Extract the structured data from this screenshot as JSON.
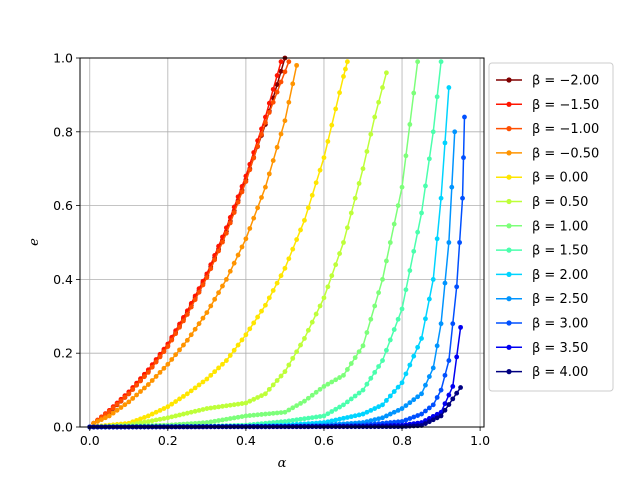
{
  "chart_data": {
    "type": "line",
    "xlabel": "α",
    "ylabel": "e",
    "xlim": [
      -0.025,
      1.01
    ],
    "ylim": [
      0,
      1
    ],
    "xticks": [
      "0.0",
      "0.2",
      "0.4",
      "0.6",
      "0.8",
      "1.0"
    ],
    "yticks": [
      "0.0",
      "0.2",
      "0.4",
      "0.6",
      "0.8",
      "1.0"
    ],
    "grid": true,
    "legend_position": "right",
    "series": [
      {
        "name": "β = −2.00",
        "color": "#800000",
        "x": [
          0.01,
          0.05,
          0.1,
          0.15,
          0.2,
          0.25,
          0.3,
          0.35,
          0.4,
          0.45,
          0.5
        ],
        "y": [
          0.01,
          0.04,
          0.09,
          0.15,
          0.22,
          0.31,
          0.41,
          0.53,
          0.67,
          0.82,
          1.0
        ]
      },
      {
        "name": "β = −1.50",
        "color": "#ff1400",
        "x": [
          0.01,
          0.05,
          0.1,
          0.15,
          0.2,
          0.25,
          0.3,
          0.35,
          0.4,
          0.45,
          0.49
        ],
        "y": [
          0.01,
          0.045,
          0.095,
          0.155,
          0.225,
          0.315,
          0.415,
          0.54,
          0.68,
          0.84,
          0.99
        ]
      },
      {
        "name": "β = −1.00",
        "color": "#ff4f00",
        "x": [
          0.01,
          0.05,
          0.1,
          0.15,
          0.2,
          0.25,
          0.3,
          0.35,
          0.4,
          0.45,
          0.51
        ],
        "y": [
          0.01,
          0.042,
          0.09,
          0.148,
          0.218,
          0.305,
          0.405,
          0.525,
          0.665,
          0.825,
          0.99
        ]
      },
      {
        "name": "β = −0.50",
        "color": "#ff9400",
        "x": [
          0.01,
          0.05,
          0.1,
          0.15,
          0.2,
          0.25,
          0.3,
          0.35,
          0.4,
          0.45,
          0.5,
          0.53
        ],
        "y": [
          0.01,
          0.03,
          0.068,
          0.115,
          0.17,
          0.235,
          0.31,
          0.4,
          0.51,
          0.65,
          0.83,
          0.98
        ]
      },
      {
        "name": "β = 0.00",
        "color": "#ffe600",
        "x": [
          0.0,
          0.1,
          0.15,
          0.2,
          0.25,
          0.3,
          0.35,
          0.4,
          0.45,
          0.5,
          0.55,
          0.6,
          0.65,
          0.66
        ],
        "y": [
          0.0,
          0.01,
          0.03,
          0.055,
          0.09,
          0.13,
          0.18,
          0.25,
          0.33,
          0.43,
          0.56,
          0.73,
          0.95,
          0.99
        ]
      },
      {
        "name": "β = 0.50",
        "color": "#beff39",
        "x": [
          0.0,
          0.1,
          0.2,
          0.3,
          0.4,
          0.45,
          0.5,
          0.55,
          0.6,
          0.65,
          0.7,
          0.73,
          0.76
        ],
        "y": [
          0.0,
          0.005,
          0.025,
          0.05,
          0.065,
          0.09,
          0.15,
          0.24,
          0.35,
          0.5,
          0.7,
          0.84,
          0.96
        ]
      },
      {
        "name": "β = 1.00",
        "color": "#7dff7a",
        "x": [
          0.0,
          0.2,
          0.3,
          0.4,
          0.5,
          0.55,
          0.6,
          0.65,
          0.7,
          0.75,
          0.8,
          0.84
        ],
        "y": [
          0.0,
          0.005,
          0.012,
          0.03,
          0.04,
          0.07,
          0.11,
          0.14,
          0.22,
          0.4,
          0.65,
          0.99
        ]
      },
      {
        "name": "β = 1.50",
        "color": "#4bffad",
        "x": [
          0.0,
          0.3,
          0.4,
          0.5,
          0.6,
          0.65,
          0.7,
          0.75,
          0.8,
          0.85,
          0.88,
          0.9
        ],
        "y": [
          0.0,
          0.002,
          0.005,
          0.015,
          0.03,
          0.06,
          0.1,
          0.18,
          0.32,
          0.58,
          0.8,
          0.99
        ]
      },
      {
        "name": "β = 2.00",
        "color": "#00d4ff",
        "x": [
          0.0,
          0.4,
          0.5,
          0.6,
          0.7,
          0.75,
          0.8,
          0.85,
          0.88,
          0.9,
          0.92
        ],
        "y": [
          0.0,
          0.002,
          0.005,
          0.012,
          0.035,
          0.06,
          0.12,
          0.24,
          0.4,
          0.62,
          0.92
        ]
      },
      {
        "name": "β = 2.50",
        "color": "#0094ff",
        "x": [
          0.0,
          0.5,
          0.6,
          0.7,
          0.75,
          0.8,
          0.85,
          0.88,
          0.9,
          0.92,
          0.935
        ],
        "y": [
          0.0,
          0.002,
          0.005,
          0.012,
          0.025,
          0.05,
          0.09,
          0.16,
          0.28,
          0.5,
          0.8
        ]
      },
      {
        "name": "β = 3.00",
        "color": "#0050ff",
        "x": [
          0.0,
          0.6,
          0.7,
          0.8,
          0.85,
          0.88,
          0.9,
          0.92,
          0.94,
          0.955,
          0.96
        ],
        "y": [
          0.0,
          0.002,
          0.005,
          0.015,
          0.035,
          0.06,
          0.1,
          0.18,
          0.38,
          0.62,
          0.84
        ]
      },
      {
        "name": "β = 3.50",
        "color": "#0000f1",
        "x": [
          0.0,
          0.7,
          0.8,
          0.85,
          0.9,
          0.93,
          0.95
        ],
        "y": [
          0.0,
          0.002,
          0.005,
          0.012,
          0.04,
          0.11,
          0.27
        ]
      },
      {
        "name": "β = 4.00",
        "color": "#000080",
        "x": [
          0.0,
          0.8,
          0.85,
          0.9,
          0.95
        ],
        "y": [
          0.0,
          0.001,
          0.004,
          0.03,
          0.107
        ]
      }
    ]
  }
}
